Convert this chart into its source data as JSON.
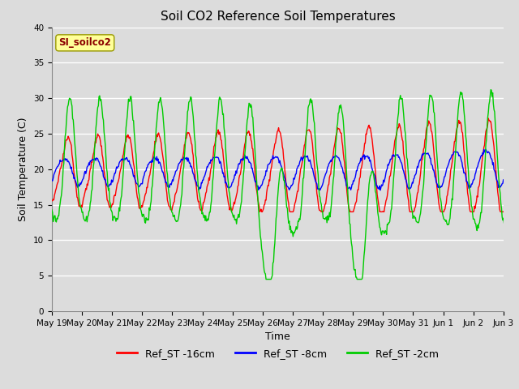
{
  "title": "Soil CO2 Reference Soil Temperatures",
  "xlabel": "Time",
  "ylabel": "Soil Temperature (C)",
  "ylim": [
    0,
    40
  ],
  "annotation_text": "SI_soilco2",
  "annotation_color": "#8B0000",
  "annotation_bg": "#FFFF99",
  "legend": [
    "Ref_ST -16cm",
    "Ref_ST -8cm",
    "Ref_ST -2cm"
  ],
  "line_colors": [
    "#FF0000",
    "#0000FF",
    "#00CC00"
  ],
  "background_color": "#DCDCDC",
  "plot_bg": "#DCDCDC",
  "grid_color": "#FFFFFF",
  "xtick_labels": [
    "May 19",
    "May 20",
    "May 21",
    "May 22",
    "May 23",
    "May 24",
    "May 25",
    "May 26",
    "May 27",
    "May 28",
    "May 29",
    "May 30",
    "May 31",
    "Jun 1",
    "Jun 2",
    "Jun 3"
  ],
  "title_fontsize": 11,
  "label_fontsize": 9,
  "tick_fontsize": 7.5,
  "yticks": [
    0,
    5,
    10,
    15,
    20,
    25,
    30,
    35,
    40
  ]
}
